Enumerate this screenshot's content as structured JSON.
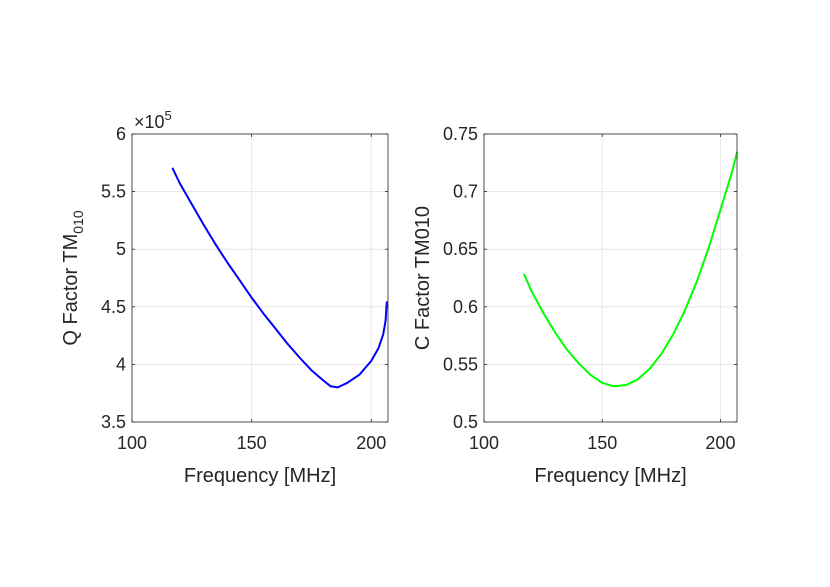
{
  "chart_data": [
    {
      "type": "line",
      "xlabel": "Frequency [MHz]",
      "ylabel": "Q Factor TM",
      "ylabel_sub": "010",
      "exponent_label": "×10",
      "exponent_power": "5",
      "xlim": [
        100,
        207
      ],
      "ylim": [
        3.5,
        6
      ],
      "xticks": [
        100,
        150,
        200
      ],
      "yticks": [
        3.5,
        4,
        4.5,
        5,
        5.5,
        6
      ],
      "ytick_labels": [
        "3.5",
        "4",
        "4.5",
        "5",
        "5.5",
        "6"
      ],
      "grid": true,
      "series": [
        {
          "color": "#0000ff",
          "x": [
            117,
            120,
            125,
            130,
            135,
            140,
            145,
            150,
            155,
            160,
            165,
            170,
            175,
            180,
            183,
            186,
            190,
            195,
            200,
            203,
            205,
            206,
            206.5
          ],
          "y": [
            5.7,
            5.57,
            5.39,
            5.21,
            5.04,
            4.88,
            4.73,
            4.58,
            4.44,
            4.31,
            4.18,
            4.06,
            3.95,
            3.86,
            3.81,
            3.8,
            3.84,
            3.91,
            4.03,
            4.14,
            4.26,
            4.38,
            4.54
          ]
        }
      ]
    },
    {
      "type": "line",
      "xlabel": "Frequency [MHz]",
      "ylabel": "C Factor TM010",
      "xlim": [
        100,
        207
      ],
      "ylim": [
        0.5,
        0.75
      ],
      "xticks": [
        100,
        150,
        200
      ],
      "yticks": [
        0.5,
        0.55,
        0.6,
        0.65,
        0.7,
        0.75
      ],
      "ytick_labels": [
        "0.5",
        "0.55",
        "0.6",
        "0.65",
        "0.7",
        "0.75"
      ],
      "grid": true,
      "series": [
        {
          "color": "#00ff00",
          "x": [
            117,
            120,
            125,
            130,
            135,
            140,
            145,
            150,
            155,
            160,
            165,
            170,
            175,
            180,
            185,
            190,
            195,
            200,
            205,
            207
          ],
          "y": [
            0.628,
            0.614,
            0.595,
            0.578,
            0.563,
            0.551,
            0.541,
            0.534,
            0.531,
            0.532,
            0.537,
            0.546,
            0.559,
            0.576,
            0.597,
            0.622,
            0.651,
            0.684,
            0.718,
            0.734
          ]
        }
      ]
    }
  ]
}
